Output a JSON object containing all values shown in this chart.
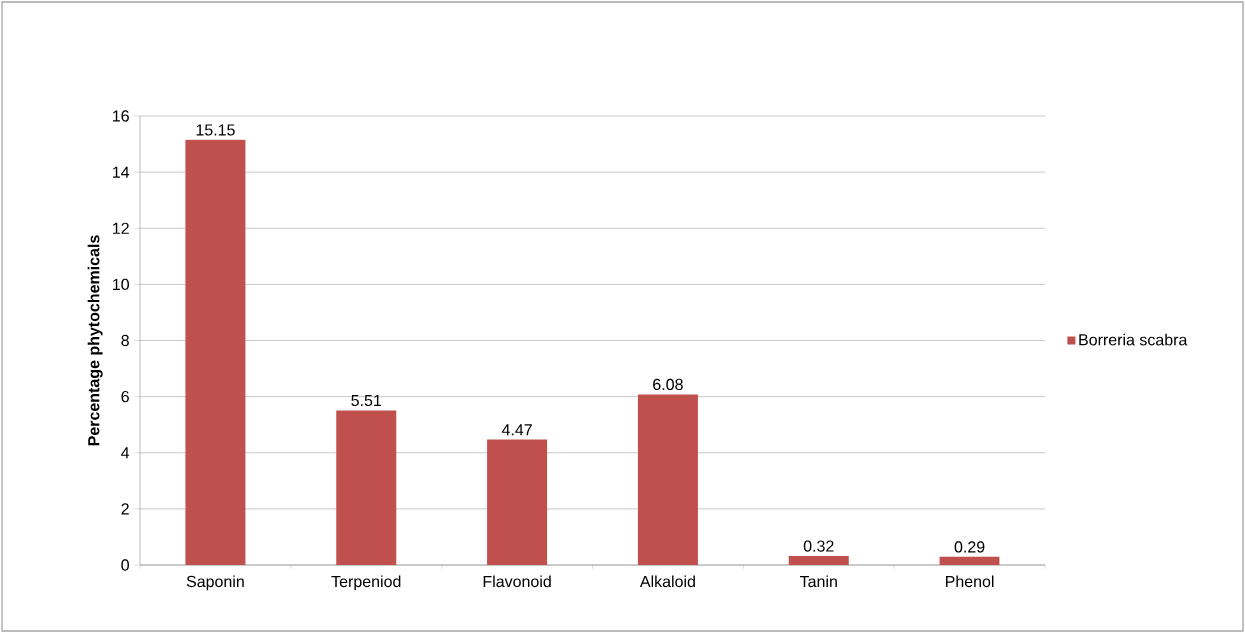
{
  "chart_data": {
    "type": "bar",
    "ylabel": "Percentage phytochemicals",
    "categories": [
      "Saponin",
      "Terpeniod",
      "Flavonoid",
      "Alkaloid",
      "Tanin",
      "Phenol"
    ],
    "series": [
      {
        "name": "Borreria scabra",
        "color": "#c0504d",
        "values": [
          15.15,
          5.51,
          4.47,
          6.08,
          0.32,
          0.29
        ]
      }
    ],
    "ylim": [
      0,
      16
    ],
    "yticks": [
      0,
      2,
      4,
      6,
      8,
      10,
      12,
      14,
      16
    ],
    "grid": "y",
    "legend": "right",
    "data_labels": true
  }
}
